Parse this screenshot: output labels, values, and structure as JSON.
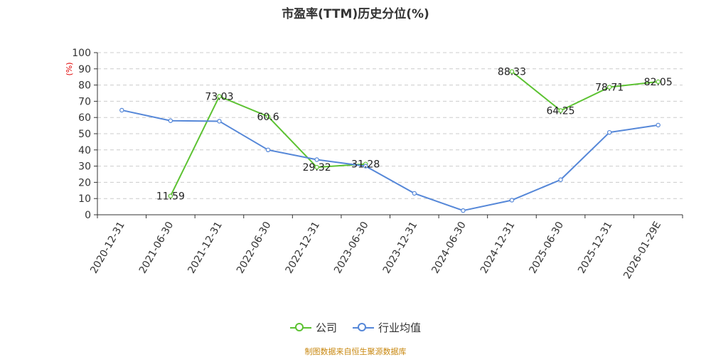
{
  "title": "市盈率(TTM)历史分位(%)",
  "source": "制图数据来自恒生聚源数据库",
  "colors": {
    "company": "#5cc232",
    "industry": "#5587d8",
    "grid": "#cccccc",
    "axis": "#333333",
    "ylabel": "#e00000",
    "source": "#c8870f"
  },
  "legend": [
    {
      "label": "公司",
      "color": "#5cc232"
    },
    {
      "label": "行业均值",
      "color": "#5587d8"
    }
  ],
  "chart_data": {
    "type": "line",
    "title": "市盈率(TTM)历史分位(%)",
    "ylabel": "(%)",
    "xlabel": "",
    "ylim": [
      0,
      100
    ],
    "yticks": [
      0,
      10,
      20,
      30,
      40,
      50,
      60,
      70,
      80,
      90,
      100
    ],
    "grid": true,
    "legend_position": "bottom",
    "categories": [
      "2020-12-31",
      "2021-06-30",
      "2021-12-31",
      "2022-06-30",
      "2022-12-31",
      "2023-06-30",
      "2023-12-31",
      "2024-06-30",
      "2024-12-31",
      "2025-06-30",
      "2025-12-31",
      "2026-01-29E"
    ],
    "series": [
      {
        "name": "公司",
        "values": [
          null,
          11.59,
          73.03,
          60.6,
          29.32,
          31.28,
          null,
          null,
          88.33,
          64.25,
          78.71,
          82.05
        ],
        "labels": [
          "",
          "11.59",
          "73.03",
          "60.6",
          "29.32",
          "31.28",
          "",
          "",
          "88.33",
          "64.25",
          "78.71",
          "82.05"
        ],
        "color": "#5cc232"
      },
      {
        "name": "行业均值",
        "values": [
          64.5,
          58.0,
          57.7,
          40.0,
          34.0,
          30.0,
          13.2,
          2.6,
          9.0,
          21.6,
          50.8,
          55.3
        ],
        "color": "#5587d8"
      }
    ]
  }
}
